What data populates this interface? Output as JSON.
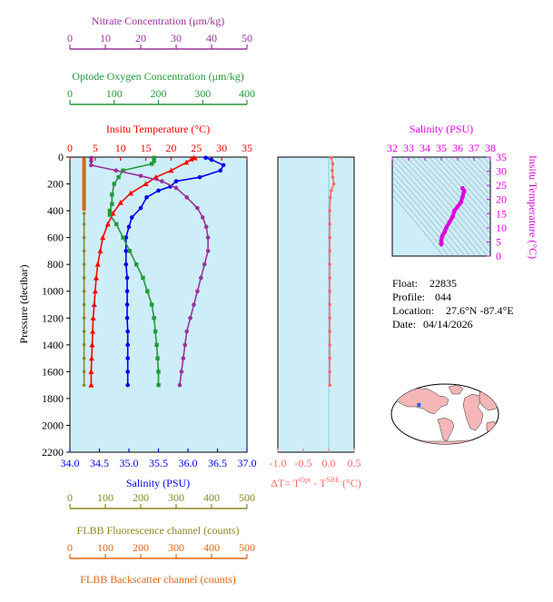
{
  "colors": {
    "temperature": "#ff0000",
    "salinity": "#0000ee",
    "oxygen": "#22993a",
    "nitrate": "#993399",
    "fluorescence": "#888822",
    "backscatter": "#dd6611",
    "delta_t": "#ff6666",
    "ts_panel_salinity": "#dd00dd",
    "panel_fill": "#cdeef8",
    "land": "#f4b6b6",
    "ocean": "#ffffff",
    "float_marker": "#1a66ff"
  },
  "chart_data": [
    {
      "id": "main-profile",
      "type": "line",
      "ylabel": "Pressure (decibar)",
      "ylim": [
        2200,
        0
      ],
      "yticks": [
        "0",
        "200",
        "400",
        "600",
        "800",
        "1000",
        "1200",
        "1400",
        "1600",
        "1800",
        "2000",
        "2200"
      ],
      "axes": {
        "nitrate": {
          "label": "Nitrate Concentration (μm/kg)",
          "range": [
            0,
            50
          ],
          "ticks": [
            "0",
            "10",
            "20",
            "30",
            "40",
            "50"
          ]
        },
        "oxygen": {
          "label": "Optode Oxygen Concentration (μm/kg)",
          "range": [
            0,
            400
          ],
          "ticks": [
            "0",
            "100",
            "200",
            "300",
            "400"
          ]
        },
        "temperature": {
          "label": "Insitu Temperature (°C)",
          "range": [
            0,
            35
          ],
          "ticks": [
            "0",
            "5",
            "10",
            "15",
            "20",
            "25",
            "30",
            "35"
          ]
        },
        "salinity": {
          "label": "Salinity (PSU)",
          "range": [
            34.0,
            37.0
          ],
          "ticks": [
            "34.0",
            "34.5",
            "35.0",
            "35.5",
            "36.0",
            "36.5",
            "37.0"
          ]
        },
        "fluorescence": {
          "label": "FLBB Fluorescence channel (counts)",
          "range": [
            0,
            500
          ],
          "ticks": [
            "0",
            "100",
            "200",
            "300",
            "400",
            "500"
          ]
        },
        "backscatter": {
          "label": "FLBB Backscatter channel (counts)",
          "range": [
            0,
            500
          ],
          "ticks": [
            "0",
            "100",
            "200",
            "300",
            "400",
            "500"
          ]
        }
      },
      "series": [
        {
          "key": "temperature",
          "marker": "triangle",
          "points": [
            [
              24.5,
              5
            ],
            [
              24,
              15
            ],
            [
              23,
              40
            ],
            [
              20,
              100
            ],
            [
              17,
              150
            ],
            [
              15,
              200
            ],
            [
              12,
              270
            ],
            [
              10,
              340
            ],
            [
              8.5,
              420
            ],
            [
              7.5,
              500
            ],
            [
              6.5,
              600
            ],
            [
              6,
              700
            ],
            [
              5.5,
              800
            ],
            [
              5.2,
              900
            ],
            [
              5,
              1000
            ],
            [
              4.8,
              1100
            ],
            [
              4.6,
              1200
            ],
            [
              4.5,
              1300
            ],
            [
              4.4,
              1400
            ],
            [
              4.3,
              1500
            ],
            [
              4.2,
              1600
            ],
            [
              4.2,
              1700
            ]
          ]
        },
        {
          "key": "salinity",
          "marker": "circle",
          "points": [
            [
              36.3,
              5
            ],
            [
              36.4,
              20
            ],
            [
              36.6,
              60
            ],
            [
              36.55,
              100
            ],
            [
              36.2,
              150
            ],
            [
              35.8,
              180
            ],
            [
              35.7,
              220
            ],
            [
              35.5,
              250
            ],
            [
              35.3,
              300
            ],
            [
              35.2,
              380
            ],
            [
              35.05,
              450
            ],
            [
              35.0,
              520
            ],
            [
              34.95,
              600
            ],
            [
              34.95,
              700
            ],
            [
              34.95,
              800
            ],
            [
              34.97,
              900
            ],
            [
              34.97,
              1000
            ],
            [
              34.97,
              1100
            ],
            [
              34.97,
              1200
            ],
            [
              34.98,
              1300
            ],
            [
              34.98,
              1400
            ],
            [
              34.98,
              1500
            ],
            [
              34.98,
              1600
            ],
            [
              34.98,
              1700
            ]
          ]
        },
        {
          "key": "oxygen",
          "marker": "square",
          "points": [
            [
              190,
              5
            ],
            [
              190,
              30
            ],
            [
              185,
              50
            ],
            [
              120,
              100
            ],
            [
              110,
              150
            ],
            [
              100,
              200
            ],
            [
              95,
              280
            ],
            [
              95,
              350
            ],
            [
              90,
              400
            ],
            [
              90,
              430
            ],
            [
              105,
              500
            ],
            [
              120,
              600
            ],
            [
              135,
              700
            ],
            [
              150,
              800
            ],
            [
              165,
              900
            ],
            [
              175,
              1000
            ],
            [
              185,
              1100
            ],
            [
              190,
              1200
            ],
            [
              193,
              1300
            ],
            [
              196,
              1400
            ],
            [
              198,
              1500
            ],
            [
              200,
              1600
            ],
            [
              200,
              1700
            ]
          ]
        },
        {
          "key": "nitrate",
          "marker": "circle",
          "points": [
            [
              6,
              5
            ],
            [
              6,
              30
            ],
            [
              6,
              60
            ],
            [
              13,
              100
            ],
            [
              20,
              140
            ],
            [
              26,
              180
            ],
            [
              30,
              230
            ],
            [
              33,
              300
            ],
            [
              36,
              380
            ],
            [
              37.5,
              450
            ],
            [
              38.5,
              520
            ],
            [
              39,
              600
            ],
            [
              39,
              700
            ],
            [
              38,
              800
            ],
            [
              37,
              900
            ],
            [
              36,
              1000
            ],
            [
              35,
              1100
            ],
            [
              34,
              1200
            ],
            [
              33,
              1300
            ],
            [
              32.5,
              1400
            ],
            [
              32,
              1500
            ],
            [
              31.5,
              1600
            ],
            [
              31,
              1700
            ]
          ]
        },
        {
          "key": "backscatter",
          "marker": "line",
          "points": [
            [
              40,
              5
            ],
            [
              40,
              100
            ],
            [
              40,
              200
            ],
            [
              40,
              300
            ],
            [
              40,
              400
            ]
          ]
        },
        {
          "key": "fluorescence",
          "marker": "circle",
          "points": [
            [
              40,
              420
            ],
            [
              40,
              500
            ],
            [
              40,
              600
            ],
            [
              40,
              700
            ],
            [
              40,
              800
            ],
            [
              40,
              900
            ],
            [
              40,
              1000
            ],
            [
              40,
              1100
            ],
            [
              40,
              1200
            ],
            [
              40,
              1300
            ],
            [
              40,
              1400
            ],
            [
              40,
              1500
            ],
            [
              40,
              1600
            ],
            [
              40,
              1700
            ]
          ]
        }
      ]
    },
    {
      "id": "delta-t",
      "type": "line",
      "xlabel": "ΔT= T",
      "xlabel_sup1": "Opt",
      "xlabel_mid": " - T",
      "xlabel_sup2": "SBE",
      "xlabel_end": " (°C)",
      "xlim": [
        -1.0,
        0.5
      ],
      "ylim": [
        2200,
        0
      ],
      "xticks": [
        "-1.0",
        "-0.5",
        "0.0",
        "0.5"
      ],
      "points": [
        [
          0.05,
          5
        ],
        [
          0.08,
          50
        ],
        [
          0.07,
          100
        ],
        [
          0.08,
          150
        ],
        [
          0.1,
          200
        ],
        [
          0.05,
          250
        ],
        [
          0.03,
          300
        ],
        [
          0.02,
          400
        ],
        [
          0.02,
          500
        ],
        [
          0.02,
          600
        ],
        [
          0.02,
          700
        ],
        [
          0.02,
          800
        ],
        [
          0.02,
          900
        ],
        [
          0.02,
          1000
        ],
        [
          0.02,
          1100
        ],
        [
          0.02,
          1200
        ],
        [
          0.02,
          1300
        ],
        [
          0.02,
          1400
        ],
        [
          0.02,
          1500
        ],
        [
          0.02,
          1600
        ],
        [
          0.02,
          1700
        ]
      ]
    },
    {
      "id": "ts-diagram",
      "type": "scatter",
      "xlabel": "Salinity (PSU)",
      "ylabel": "Insitu Temperature (°C)",
      "xlim": [
        32,
        38
      ],
      "ylim": [
        0,
        35
      ],
      "xticks": [
        "32",
        "33",
        "34",
        "35",
        "36",
        "37",
        "38"
      ],
      "yticks": [
        "0",
        "5",
        "10",
        "15",
        "20",
        "25",
        "30",
        "35"
      ],
      "points": [
        [
          35.0,
          4.2
        ],
        [
          35.0,
          4.6
        ],
        [
          35.0,
          5.5
        ],
        [
          35.05,
          7.0
        ],
        [
          35.2,
          8.5
        ],
        [
          35.3,
          10
        ],
        [
          35.5,
          12
        ],
        [
          35.7,
          14
        ],
        [
          35.8,
          16
        ],
        [
          36.0,
          17.5
        ],
        [
          36.2,
          19
        ],
        [
          36.3,
          21
        ],
        [
          36.4,
          23
        ],
        [
          36.3,
          24
        ]
      ]
    }
  ],
  "info": {
    "float_label": "Float:",
    "float_value": "22835",
    "profile_label": "Profile:",
    "profile_value": "044",
    "location_label": "Location:",
    "location_value": "27.6°N  -87.4°E",
    "date_label": "Date:",
    "date_value": "04/14/2026"
  },
  "map": {
    "marker_lon": -87.4,
    "marker_lat": 27.6
  }
}
